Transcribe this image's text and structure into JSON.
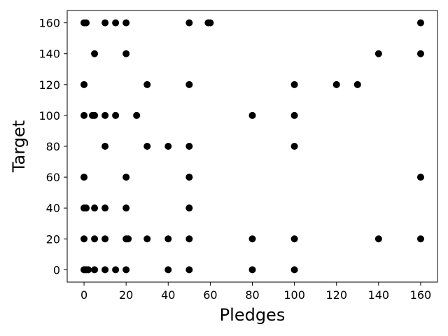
{
  "chart_data": {
    "type": "scatter",
    "xlabel": "Pledges",
    "ylabel": "Target",
    "xlim": [
      -8,
      168
    ],
    "ylim": [
      -8,
      168
    ],
    "xticks": [
      0,
      20,
      40,
      60,
      80,
      100,
      120,
      140,
      160
    ],
    "yticks": [
      0,
      20,
      40,
      60,
      80,
      100,
      120,
      140,
      160
    ],
    "grid": false,
    "marker_color": "#000000",
    "points": [
      [
        0,
        160
      ],
      [
        1,
        160
      ],
      [
        10,
        160
      ],
      [
        15,
        160
      ],
      [
        20,
        160
      ],
      [
        50,
        160
      ],
      [
        59,
        160
      ],
      [
        60,
        160
      ],
      [
        160,
        160
      ],
      [
        5,
        140
      ],
      [
        20,
        140
      ],
      [
        140,
        140
      ],
      [
        160,
        140
      ],
      [
        0,
        120
      ],
      [
        30,
        120
      ],
      [
        50,
        120
      ],
      [
        100,
        120
      ],
      [
        120,
        120
      ],
      [
        130,
        120
      ],
      [
        0,
        100
      ],
      [
        4,
        100
      ],
      [
        5,
        100
      ],
      [
        10,
        100
      ],
      [
        15,
        100
      ],
      [
        25,
        100
      ],
      [
        80,
        100
      ],
      [
        100,
        100
      ],
      [
        10,
        80
      ],
      [
        30,
        80
      ],
      [
        40,
        80
      ],
      [
        50,
        80
      ],
      [
        100,
        80
      ],
      [
        0,
        60
      ],
      [
        20,
        60
      ],
      [
        50,
        60
      ],
      [
        160,
        60
      ],
      [
        0,
        40
      ],
      [
        1,
        40
      ],
      [
        5,
        40
      ],
      [
        10,
        40
      ],
      [
        20,
        40
      ],
      [
        50,
        40
      ],
      [
        0,
        20
      ],
      [
        5,
        20
      ],
      [
        10,
        20
      ],
      [
        20,
        20
      ],
      [
        21,
        20
      ],
      [
        30,
        20
      ],
      [
        40,
        20
      ],
      [
        50,
        20
      ],
      [
        80,
        20
      ],
      [
        100,
        20
      ],
      [
        140,
        20
      ],
      [
        160,
        20
      ],
      [
        0,
        0
      ],
      [
        1,
        0
      ],
      [
        2,
        0
      ],
      [
        5,
        0
      ],
      [
        10,
        0
      ],
      [
        15,
        0
      ],
      [
        20,
        0
      ],
      [
        40,
        0
      ],
      [
        50,
        0
      ],
      [
        80,
        0
      ],
      [
        100,
        0
      ]
    ]
  }
}
